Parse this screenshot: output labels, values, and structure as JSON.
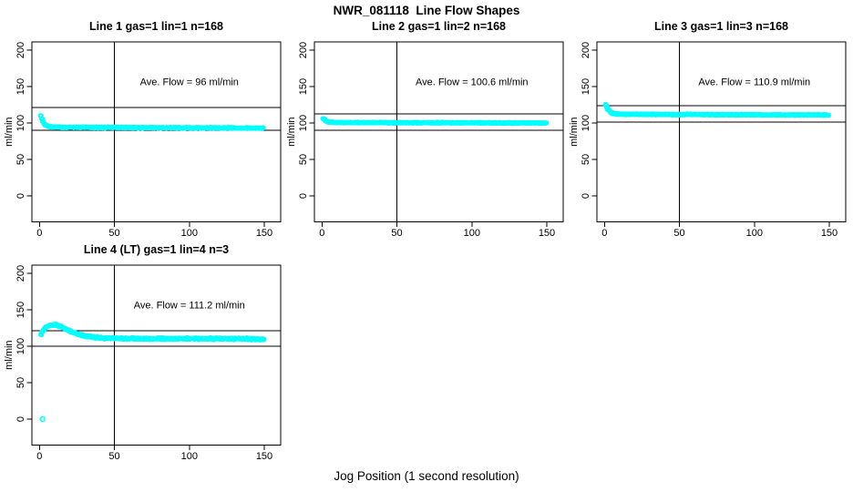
{
  "title": "NWR_081118  Line Flow Shapes",
  "xlabel": "Jog Position (1 second resolution)",
  "colors": {
    "marker": "#00FFFF",
    "axis": "#000000",
    "background": "#FFFFFF"
  },
  "chart_data": [
    {
      "type": "scatter",
      "title": "Line 1 gas=1 lin=1 n=168",
      "gas": 1,
      "lin": 1,
      "n": 168,
      "annotation": "Ave. Flow =  96  ml/min",
      "ave_flow_ml_min": 96,
      "ylabel": "ml/min",
      "xticks": [
        0,
        50,
        100,
        150
      ],
      "yticks": [
        0,
        50,
        100,
        150,
        200
      ],
      "xlim": [
        -5,
        161
      ],
      "ylim": [
        -35,
        211
      ],
      "grid": false,
      "vline_x": 50,
      "hlines": [
        121,
        90
      ],
      "annotation_pos": [
        100,
        152
      ],
      "band_halfwidth": 1.1,
      "profile": [
        [
          1,
          110
        ],
        [
          1.7,
          106
        ],
        [
          2.4,
          102
        ],
        [
          3.2,
          99
        ],
        [
          4,
          97.2
        ],
        [
          5,
          95.8
        ],
        [
          7,
          94.8
        ],
        [
          10,
          94.3
        ],
        [
          15,
          94.1
        ],
        [
          25,
          94.0
        ],
        [
          40,
          93.9
        ],
        [
          60,
          93.7
        ],
        [
          90,
          93.5
        ],
        [
          120,
          93.3
        ],
        [
          150,
          93.0
        ]
      ],
      "outlier_points": []
    },
    {
      "type": "scatter",
      "title": "Line 2 gas=1 lin=2 n=168",
      "gas": 1,
      "lin": 2,
      "n": 168,
      "annotation": "Ave. Flow =  100.6  ml/min",
      "ave_flow_ml_min": 100.6,
      "ylabel": "ml/min",
      "xticks": [
        0,
        50,
        100,
        150
      ],
      "yticks": [
        0,
        50,
        100,
        150,
        200
      ],
      "xlim": [
        -5,
        161
      ],
      "ylim": [
        -35,
        211
      ],
      "grid": false,
      "vline_x": 50,
      "hlines": [
        112.5,
        90
      ],
      "annotation_pos": [
        100,
        152
      ],
      "band_halfwidth": 1.1,
      "profile": [
        [
          1,
          106.5
        ],
        [
          2,
          103.5
        ],
        [
          3,
          102.2
        ],
        [
          4.5,
          101.3
        ],
        [
          6.5,
          100.9
        ],
        [
          10,
          100.7
        ],
        [
          20,
          100.6
        ],
        [
          40,
          100.5
        ],
        [
          70,
          100.4
        ],
        [
          110,
          100.2
        ],
        [
          150,
          100.0
        ]
      ],
      "outlier_points": []
    },
    {
      "type": "scatter",
      "title": "Line 3 gas=1 lin=3 n=168",
      "gas": 1,
      "lin": 3,
      "n": 168,
      "annotation": "Ave. Flow =  110.9  ml/min",
      "ave_flow_ml_min": 110.9,
      "ylabel": "ml/min",
      "xticks": [
        0,
        50,
        100,
        150
      ],
      "yticks": [
        0,
        50,
        100,
        150,
        200
      ],
      "xlim": [
        -5,
        161
      ],
      "ylim": [
        -35,
        211
      ],
      "grid": false,
      "vline_x": 50,
      "hlines": [
        124,
        101
      ],
      "annotation_pos": [
        100,
        152
      ],
      "band_halfwidth": 1.1,
      "profile": [
        [
          1,
          125
        ],
        [
          1.8,
          121
        ],
        [
          2.7,
          117.5
        ],
        [
          3.8,
          114.8
        ],
        [
          5.5,
          113.2
        ],
        [
          8,
          112.4
        ],
        [
          12,
          112.1
        ],
        [
          20,
          111.9
        ],
        [
          40,
          111.7
        ],
        [
          70,
          111.5
        ],
        [
          110,
          111.2
        ],
        [
          150,
          111.0
        ]
      ],
      "outlier_points": []
    },
    {
      "type": "scatter",
      "title": "Line 4 (LT) gas=1 lin=4 n=3",
      "gas": 1,
      "lin": 4,
      "n": 3,
      "annotation": "Ave. Flow =  111.2  ml/min",
      "ave_flow_ml_min": 111.2,
      "ylabel": "ml/min",
      "xticks": [
        0,
        50,
        100,
        150
      ],
      "yticks": [
        0,
        50,
        100,
        150,
        200
      ],
      "xlim": [
        -5,
        161
      ],
      "ylim": [
        -35,
        211
      ],
      "grid": false,
      "vline_x": 50,
      "hlines": [
        121,
        100
      ],
      "annotation_pos": [
        100,
        152
      ],
      "band_halfwidth": 1.8,
      "profile": [
        [
          1,
          117
        ],
        [
          2,
          120
        ],
        [
          3,
          123
        ],
        [
          4,
          125.5
        ],
        [
          5,
          127
        ],
        [
          6.5,
          128.5
        ],
        [
          8,
          129.3
        ],
        [
          10,
          129.5
        ],
        [
          12,
          128.8
        ],
        [
          14,
          127
        ],
        [
          16.5,
          124.5
        ],
        [
          19,
          122
        ],
        [
          22,
          119.3
        ],
        [
          25,
          117
        ],
        [
          28,
          115.2
        ],
        [
          31,
          113.8
        ],
        [
          34,
          112.8
        ],
        [
          38,
          111.8
        ],
        [
          43,
          111.2
        ],
        [
          50,
          110.8
        ],
        [
          60,
          110.4
        ],
        [
          75,
          110.3
        ],
        [
          95,
          110.4
        ],
        [
          115,
          110.3
        ],
        [
          135,
          110.2
        ],
        [
          150,
          109.6
        ]
      ],
      "outlier_points": [
        [
          2,
          0
        ]
      ]
    }
  ]
}
